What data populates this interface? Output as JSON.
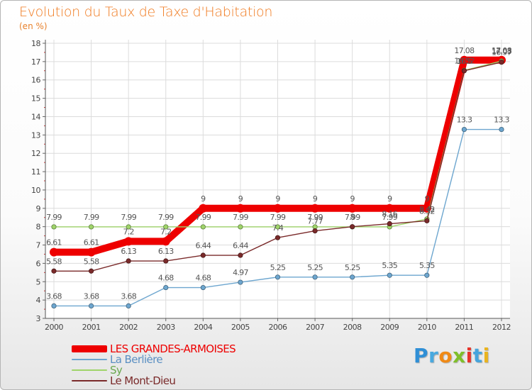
{
  "title": "Evolution du Taux de Taxe d'Habitation",
  "subtitle": "(en %)",
  "logo": {
    "text": "Proxiti",
    "letters": [
      "P",
      "r",
      "o",
      "x",
      "i",
      "t",
      "i"
    ],
    "colors": [
      "#2f8fd6",
      "#49a9df",
      "#f08a16",
      "#7fbf2a",
      "#e6342b",
      "#46a4dc",
      "#e9b41f"
    ]
  },
  "chart_data": {
    "type": "line",
    "x": [
      "2000",
      "2001",
      "2002",
      "2003",
      "2004",
      "2005",
      "2006",
      "2007",
      "2008",
      "2009",
      "2010",
      "2011",
      "2012"
    ],
    "ylim": [
      3,
      18
    ],
    "yticks": [
      3,
      4,
      5,
      6,
      7,
      8,
      9,
      10,
      11,
      12,
      13,
      14,
      15,
      16,
      17,
      18
    ],
    "grid": true,
    "legend_position": "bottom-left",
    "series": [
      {
        "name": "LES GRANDES-ARMOISES",
        "color": "#ee0000",
        "values": [
          6.61,
          6.61,
          7.2,
          7.2,
          9,
          9,
          9,
          9,
          9,
          9,
          9,
          17.08,
          17.08
        ],
        "labels": [
          "6.61",
          "6.61",
          "7.2",
          "7.2",
          "9",
          "9",
          "9",
          "9",
          "9",
          "9",
          "9",
          "17.08",
          "17.08"
        ]
      },
      {
        "name": "La Berlière",
        "color": "#6da6cf",
        "values": [
          3.68,
          3.68,
          3.68,
          4.68,
          4.68,
          4.97,
          5.25,
          5.25,
          5.25,
          5.35,
          5.35,
          13.3,
          13.3
        ],
        "labels": [
          "3.68",
          "3.68",
          "3.68",
          "4.68",
          "4.68",
          "4.97",
          "5.25",
          "5.25",
          "5.25",
          "5.35",
          "5.35",
          "13.3",
          "13.3"
        ]
      },
      {
        "name": "Sy",
        "color": "#9fd46a",
        "values": [
          7.99,
          7.99,
          7.99,
          7.99,
          7.99,
          7.99,
          7.99,
          7.99,
          7.99,
          7.99,
          8.42,
          16.52,
          17.03
        ],
        "labels": [
          "7.99",
          "7.99",
          "7.99",
          "7.99",
          "7.99",
          "7.99",
          "7.99",
          "7.99",
          "7.99",
          "7.99",
          "8.42",
          "16.52",
          "17.03"
        ]
      },
      {
        "name": "Le Mont-Dieu",
        "color": "#7a2a2a",
        "values": [
          5.58,
          5.58,
          6.13,
          6.13,
          6.44,
          6.44,
          7.4,
          7.77,
          8,
          8.16,
          8.32,
          16.5,
          16.97
        ],
        "labels": [
          "5.58",
          "5.58",
          "6.13",
          "6.13",
          "6.44",
          "6.44",
          "7.4",
          "7.77",
          "8",
          "8.16",
          "8.32",
          "16.5",
          "16.97"
        ]
      }
    ]
  }
}
